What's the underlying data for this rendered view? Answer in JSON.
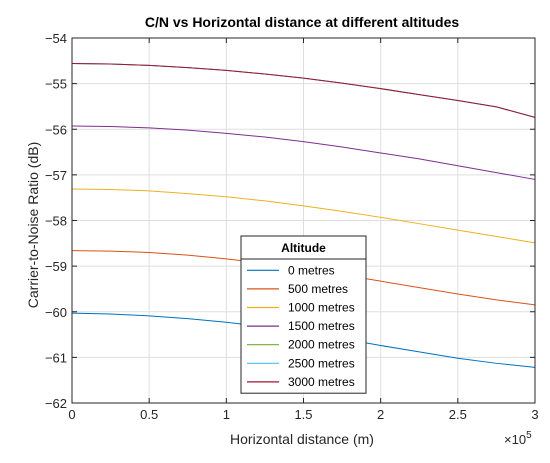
{
  "chart_data": {
    "type": "line",
    "title": "C/N vs Horizontal distance at different altitudes",
    "xlabel": "Horizontal distance (m)",
    "ylabel": "Carrier-to-Noise Ratio (dB)",
    "x_exponent_label": "×10",
    "x_exponent_power": "5",
    "xlim": [
      0,
      3
    ],
    "ylim": [
      -62,
      -54
    ],
    "x_ticks": [
      0,
      0.5,
      1,
      1.5,
      2,
      2.5,
      3
    ],
    "x_tick_labels": [
      "0",
      "0.5",
      "1",
      "1.5",
      "2",
      "2.5",
      "3"
    ],
    "y_ticks": [
      -62,
      -61,
      -60,
      -59,
      -58,
      -57,
      -56,
      -55,
      -54
    ],
    "y_tick_labels": [
      "−62",
      "−61",
      "−60",
      "−59",
      "−58",
      "−57",
      "−56",
      "−55",
      "−54"
    ],
    "grid": true,
    "legend": {
      "title": "Altitude",
      "placement": "bottom-center"
    },
    "x": [
      0,
      0.25,
      0.5,
      0.75,
      1,
      1.25,
      1.5,
      1.75,
      2,
      2.25,
      2.5,
      2.75,
      3
    ],
    "series": [
      {
        "name": "0 metres",
        "color": "#0072BD",
        "values": [
          -60.03,
          -60.05,
          -60.09,
          -60.15,
          -60.23,
          -60.33,
          -60.45,
          -60.59,
          -60.74,
          -60.88,
          -61.02,
          -61.13,
          -61.22
        ]
      },
      {
        "name": "500 metres",
        "color": "#D95319",
        "values": [
          -58.66,
          -58.67,
          -58.7,
          -58.76,
          -58.84,
          -58.94,
          -59.06,
          -59.19,
          -59.33,
          -59.47,
          -59.61,
          -59.74,
          -59.85
        ]
      },
      {
        "name": "1000 metres",
        "color": "#EDB120",
        "values": [
          -57.31,
          -57.32,
          -57.35,
          -57.41,
          -57.48,
          -57.57,
          -57.68,
          -57.8,
          -57.93,
          -58.07,
          -58.21,
          -58.35,
          -58.49
        ]
      },
      {
        "name": "1500 metres",
        "color": "#7E2F8E",
        "values": [
          -55.93,
          -55.94,
          -55.97,
          -56.02,
          -56.09,
          -56.17,
          -56.27,
          -56.39,
          -56.52,
          -56.65,
          -56.8,
          -56.95,
          -57.1
        ]
      },
      {
        "name": "2000 metres",
        "color": "#77AC30",
        "values": [
          -54.56,
          -54.57,
          -54.6,
          -54.65,
          -54.71,
          -54.79,
          -54.88,
          -54.99,
          -55.11,
          -55.24,
          -55.37,
          -55.51,
          -55.74
        ]
      },
      {
        "name": "2500 metres",
        "color": "#4DBEEE",
        "values": [
          -54.56,
          -54.57,
          -54.6,
          -54.65,
          -54.71,
          -54.79,
          -54.88,
          -54.99,
          -55.11,
          -55.24,
          -55.37,
          -55.51,
          -55.74
        ]
      },
      {
        "name": "3000 metres",
        "color": "#A2142F",
        "values": [
          -54.56,
          -54.57,
          -54.6,
          -54.65,
          -54.71,
          -54.79,
          -54.88,
          -54.99,
          -55.11,
          -55.24,
          -55.37,
          -55.51,
          -55.74
        ]
      }
    ]
  }
}
